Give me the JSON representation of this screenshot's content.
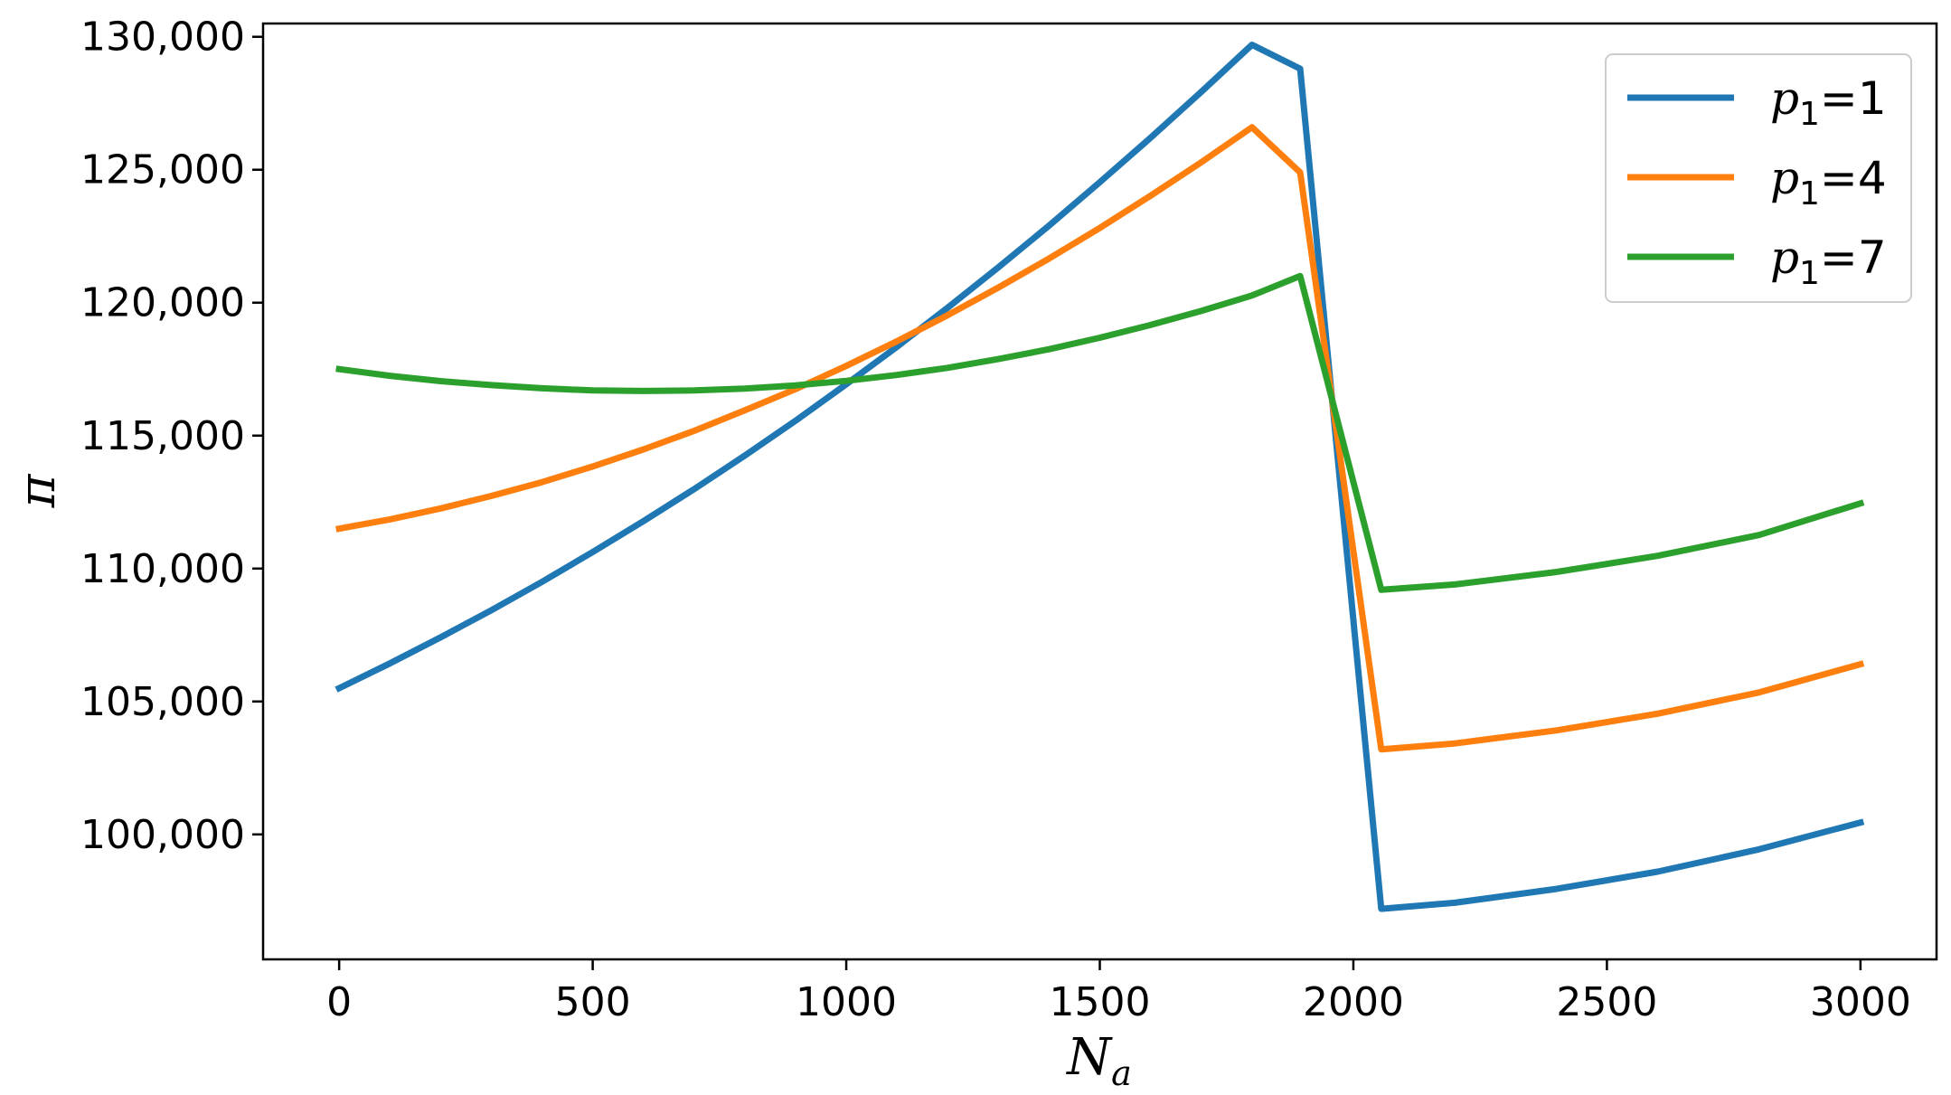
{
  "chart_data": {
    "type": "line",
    "title": "",
    "xlabel": "N",
    "xlabel_sub": "a",
    "ylabel": "π",
    "xlim": [
      -150,
      3150
    ],
    "ylim": [
      95300,
      130500
    ],
    "xticks": [
      0,
      500,
      1000,
      1500,
      2000,
      2500,
      3000
    ],
    "xtick_labels": [
      "0",
      "500",
      "1000",
      "1500",
      "2000",
      "2500",
      "3000"
    ],
    "yticks": [
      100000,
      105000,
      110000,
      115000,
      120000,
      125000,
      130000
    ],
    "ytick_labels": [
      "100,000",
      "105,000",
      "110,000",
      "115,000",
      "120,000",
      "125,000",
      "130,000"
    ],
    "grid": false,
    "legend_position": "top-right",
    "series": [
      {
        "name": "p1=1",
        "label_var": "p",
        "label_sub": "1",
        "label_rest": "=1",
        "color": "#1f77b4",
        "x": [
          0,
          100,
          200,
          300,
          400,
          500,
          600,
          700,
          800,
          900,
          1000,
          1100,
          1200,
          1300,
          1400,
          1500,
          1600,
          1700,
          1800,
          1895,
          2055,
          2200,
          2400,
          2600,
          2800,
          3000
        ],
        "y": [
          105500,
          106430,
          107410,
          108430,
          109500,
          110620,
          111780,
          112990,
          114250,
          115560,
          116930,
          118340,
          119810,
          121330,
          122900,
          124530,
          126200,
          127930,
          129700,
          128800,
          97200,
          97430,
          97950,
          98600,
          99440,
          100450
        ]
      },
      {
        "name": "p1=4",
        "label_var": "p",
        "label_sub": "1",
        "label_rest": "=4",
        "color": "#ff7f0e",
        "x": [
          0,
          100,
          200,
          300,
          400,
          500,
          600,
          700,
          800,
          900,
          1000,
          1100,
          1200,
          1300,
          1400,
          1500,
          1600,
          1700,
          1800,
          1895,
          2055,
          2200,
          2400,
          2600,
          2800,
          3000
        ],
        "y": [
          111500,
          111850,
          112260,
          112730,
          113250,
          113840,
          114480,
          115180,
          115950,
          116750,
          117620,
          118550,
          119530,
          120570,
          121660,
          122810,
          124020,
          125280,
          126600,
          124900,
          103200,
          103420,
          103910,
          104540,
          105340,
          106400
        ]
      },
      {
        "name": "p1=7",
        "label_var": "p",
        "label_sub": "1",
        "label_rest": "=7",
        "color": "#2ca02c",
        "x": [
          0,
          100,
          200,
          300,
          400,
          500,
          600,
          700,
          800,
          900,
          1000,
          1100,
          1200,
          1300,
          1400,
          1500,
          1600,
          1700,
          1800,
          1895,
          2055,
          2200,
          2400,
          2600,
          2800,
          3000
        ],
        "y": [
          117500,
          117250,
          117050,
          116900,
          116780,
          116700,
          116680,
          116700,
          116770,
          116890,
          117060,
          117280,
          117550,
          117880,
          118250,
          118680,
          119160,
          119690,
          120270,
          121000,
          109200,
          109400,
          109870,
          110480,
          111260,
          112450
        ]
      }
    ]
  }
}
